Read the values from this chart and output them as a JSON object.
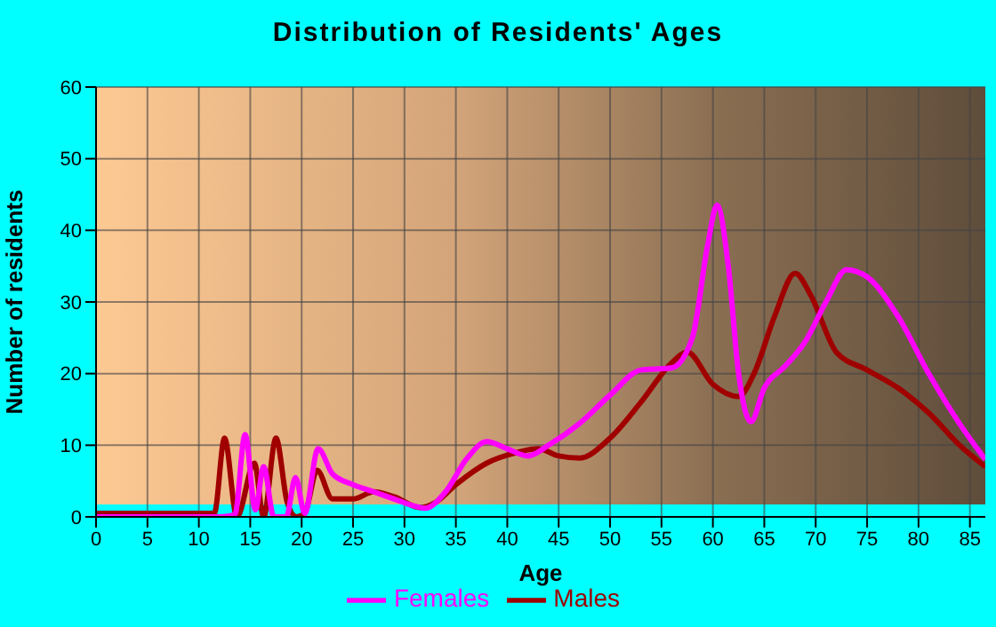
{
  "chart_data": {
    "type": "line",
    "title": "Distribution of Residents' Ages",
    "xlabel": "Age",
    "ylabel": "Number of residents",
    "xlim": [
      0,
      86.5
    ],
    "ylim": [
      0,
      60
    ],
    "xticks": [
      0,
      5,
      10,
      15,
      20,
      25,
      30,
      35,
      40,
      45,
      50,
      55,
      60,
      65,
      70,
      75,
      80,
      85
    ],
    "yticks": [
      0,
      10,
      20,
      30,
      40,
      50,
      60
    ],
    "grid": true,
    "legend": "bottom",
    "marker": "none",
    "line_style": "solid",
    "series": [
      {
        "name": "Males",
        "color": "#a00000",
        "x": [
          0,
          5,
          10,
          11.5,
          12.5,
          13.7,
          15.4,
          16.3,
          17.5,
          18.6,
          19.5,
          20.3,
          21.5,
          23,
          25,
          27,
          29,
          31.5,
          33,
          35,
          38,
          41,
          43,
          45,
          47,
          50,
          53,
          56,
          57.5,
          60,
          62.5,
          64,
          66,
          68,
          69.5,
          72,
          75,
          78,
          81,
          84,
          86.5
        ],
        "values": [
          0.5,
          0.5,
          0.5,
          0.5,
          11,
          0,
          7.5,
          0,
          11,
          2,
          0,
          0.5,
          6.5,
          2.5,
          2.5,
          3.5,
          2.8,
          1.3,
          2,
          4.5,
          7.5,
          9,
          9.5,
          8.5,
          8.2,
          11,
          16,
          21.5,
          23,
          18.5,
          16.8,
          20,
          28,
          34,
          31,
          23,
          20.5,
          18,
          14.5,
          10,
          7
        ]
      },
      {
        "name": "Females",
        "color": "#ff00ff",
        "x": [
          0,
          5,
          10,
          12,
          13.5,
          14.5,
          15.5,
          16.3,
          17.3,
          18.5,
          19.4,
          20.3,
          21.6,
          23,
          25,
          27,
          29,
          31,
          32,
          34,
          36,
          38,
          40,
          42,
          44,
          47,
          50,
          53,
          56,
          58,
          59.5,
          60.4,
          61.5,
          62.5,
          63.7,
          65,
          67,
          69,
          71,
          73,
          75,
          78,
          81,
          84,
          86.5
        ],
        "values": [
          0,
          0,
          0,
          0,
          0.3,
          11.5,
          1,
          7,
          0,
          0,
          5.5,
          0.5,
          9.5,
          6,
          4.5,
          3.5,
          2.5,
          1.5,
          1.2,
          3.5,
          8,
          10.5,
          9.5,
          8.5,
          10,
          13,
          17,
          20.5,
          20.8,
          25,
          38,
          43.5,
          35,
          20,
          13.3,
          18,
          21,
          24.5,
          30,
          34.5,
          33.5,
          28,
          20,
          13,
          8
        ]
      }
    ]
  }
}
